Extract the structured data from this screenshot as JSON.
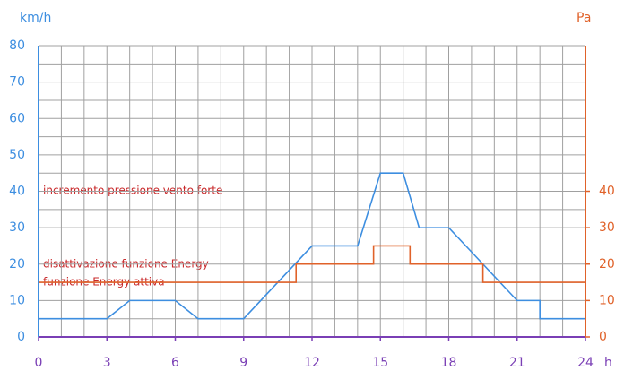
{
  "chart_data": {
    "type": "line",
    "y_label": "km/h",
    "y2_label": "Pa",
    "x_label": "h",
    "xlim": [
      0,
      24
    ],
    "xticks": [
      0,
      3,
      6,
      9,
      12,
      15,
      18,
      21,
      24
    ],
    "ylim": [
      0,
      80
    ],
    "yticks": [
      0,
      10,
      20,
      30,
      40,
      50,
      60,
      70,
      80
    ],
    "y2lim": [
      0,
      80
    ],
    "y2ticks": [
      0,
      10,
      20,
      30,
      40
    ],
    "grid": true,
    "series": [
      {
        "color": "#3d8ee0",
        "x": [
          0,
          3,
          4,
          6,
          7,
          9,
          12,
          14,
          15,
          16,
          16.7,
          18,
          21,
          22,
          22,
          24
        ],
        "values": [
          5,
          5,
          10,
          10,
          5,
          5,
          25,
          25,
          45,
          45,
          30,
          30,
          10,
          10,
          5,
          5
        ]
      },
      {
        "color": "#e0622a",
        "axis": "y2",
        "x": [
          0,
          11.3,
          11.3,
          14.7,
          14.7,
          16.3,
          16.3,
          19.5,
          19.5,
          24
        ],
        "values": [
          15,
          15,
          20,
          20,
          25,
          25,
          20,
          20,
          15,
          15
        ]
      }
    ],
    "annotations": [
      "incremento pressione vento forte",
      "disattivazione funzione Energy",
      "funzione Energy attiva"
    ]
  }
}
